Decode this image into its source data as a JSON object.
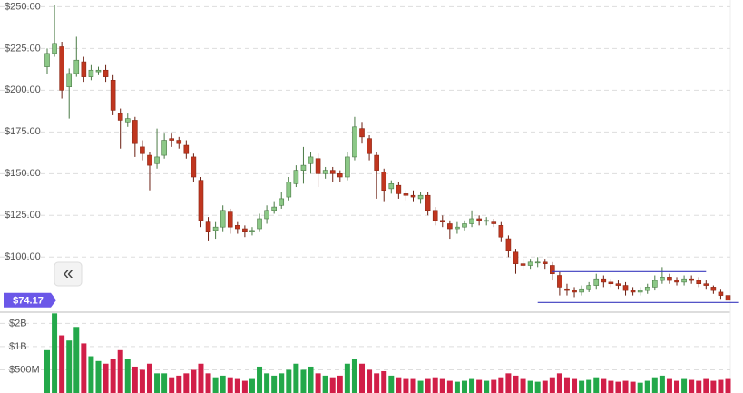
{
  "chart_data": {
    "type": "candlestick",
    "open": [
      214,
      222,
      226,
      202,
      210,
      217,
      208,
      211,
      212,
      206,
      186,
      181,
      182,
      166,
      161,
      156,
      161,
      171,
      170,
      167,
      160,
      146,
      121,
      116,
      118,
      127,
      119,
      117,
      115,
      117,
      123,
      128,
      131,
      136,
      144,
      152,
      156,
      159,
      150,
      152,
      150,
      148,
      160,
      177,
      171,
      161,
      151,
      141,
      143,
      138,
      137,
      135,
      137,
      128,
      122,
      120,
      117,
      118,
      120,
      123,
      122,
      121,
      119,
      111,
      103,
      96,
      95,
      97,
      97,
      95,
      89,
      81,
      80,
      79,
      81,
      83,
      87,
      85,
      84,
      83,
      80,
      79,
      80,
      82,
      86,
      88,
      86,
      85,
      87,
      86,
      84,
      82,
      79,
      77
    ],
    "high": [
      225,
      251,
      229,
      213,
      232,
      220,
      215,
      214,
      215,
      209,
      189,
      186,
      184,
      170,
      163,
      177,
      174,
      174,
      172,
      170,
      162,
      148,
      124,
      121,
      131,
      129,
      121,
      119,
      118,
      126,
      131,
      133,
      139,
      148,
      155,
      166,
      163,
      162,
      154,
      154,
      152,
      163,
      184,
      181,
      173,
      163,
      153,
      146,
      145,
      140,
      140,
      139,
      139,
      130,
      125,
      122,
      121,
      122,
      128,
      125,
      124,
      123,
      121,
      113,
      105,
      99,
      99,
      100,
      99,
      97,
      91,
      84,
      82,
      83,
      85,
      90,
      89,
      87,
      86,
      85,
      82,
      82,
      84,
      89,
      94,
      90,
      88,
      89,
      89,
      88,
      86,
      83,
      81,
      78
    ],
    "low": [
      210,
      220,
      195,
      183,
      208,
      205,
      206,
      209,
      205,
      185,
      165,
      178,
      160,
      158,
      140,
      153,
      159,
      166,
      165,
      159,
      145,
      118,
      110,
      111,
      115,
      114,
      114,
      112,
      113,
      115,
      120,
      126,
      129,
      134,
      142,
      144,
      150,
      142,
      147,
      145,
      145,
      146,
      158,
      168,
      158,
      135,
      133,
      138,
      135,
      134,
      133,
      132,
      125,
      119,
      118,
      111,
      114,
      116,
      118,
      119,
      119,
      118,
      109,
      100,
      90,
      92,
      93,
      94,
      93,
      86,
      77,
      77,
      76,
      77,
      79,
      81,
      82,
      82,
      81,
      77,
      77,
      77,
      78,
      80,
      84,
      84,
      83,
      83,
      84,
      82,
      81,
      78,
      75,
      73
    ],
    "close": [
      222,
      228,
      200,
      210,
      218,
      208,
      212,
      212,
      208,
      188,
      182,
      183,
      168,
      162,
      155,
      160,
      170,
      170,
      168,
      162,
      148,
      122,
      115,
      118,
      128,
      118,
      117,
      115,
      116,
      123,
      128,
      130,
      135,
      145,
      152,
      155,
      160,
      150,
      152,
      150,
      148,
      160,
      178,
      172,
      162,
      152,
      140,
      144,
      138,
      137,
      136,
      137,
      128,
      122,
      121,
      117,
      118,
      120,
      123,
      122,
      122,
      120,
      112,
      104,
      96,
      95,
      97,
      97,
      96,
      90,
      82,
      80,
      79,
      81,
      83,
      87,
      85,
      84,
      83,
      80,
      79,
      80,
      82,
      86,
      88,
      86,
      85,
      87,
      86,
      84,
      83,
      80,
      77,
      74.17
    ],
    "volume": [
      900000000,
      2700000000,
      1400000000,
      1200000000,
      1800000000,
      1100000000,
      750000000,
      650000000,
      600000000,
      700000000,
      900000000,
      700000000,
      550000000,
      500000000,
      600000000,
      450000000,
      450000000,
      400000000,
      420000000,
      450000000,
      500000000,
      600000000,
      450000000,
      400000000,
      420000000,
      400000000,
      380000000,
      360000000,
      380000000,
      550000000,
      450000000,
      420000000,
      450000000,
      500000000,
      600000000,
      500000000,
      550000000,
      450000000,
      420000000,
      400000000,
      420000000,
      600000000,
      700000000,
      600000000,
      500000000,
      450000000,
      480000000,
      420000000,
      400000000,
      380000000,
      380000000,
      360000000,
      380000000,
      400000000,
      380000000,
      360000000,
      350000000,
      360000000,
      380000000,
      370000000,
      360000000,
      370000000,
      400000000,
      450000000,
      420000000,
      380000000,
      360000000,
      350000000,
      360000000,
      400000000,
      450000000,
      400000000,
      380000000,
      360000000,
      370000000,
      400000000,
      380000000,
      360000000,
      350000000,
      360000000,
      350000000,
      340000000,
      360000000,
      400000000,
      420000000,
      380000000,
      360000000,
      380000000,
      370000000,
      360000000,
      380000000,
      360000000,
      370000000,
      380000000
    ],
    "ylim": [
      67,
      254
    ],
    "yticks": [
      {
        "value": 100,
        "label": "$100.00"
      },
      {
        "value": 125,
        "label": "$125.00"
      },
      {
        "value": 150,
        "label": "$150.00"
      },
      {
        "value": 175,
        "label": "$175.00"
      },
      {
        "value": 200,
        "label": "$200.00"
      },
      {
        "value": 225,
        "label": "$225.00"
      },
      {
        "value": 250,
        "label": "$250.00"
      }
    ],
    "volume_ylim": [
      250000000,
      2800000000
    ],
    "volume_log": true,
    "volume_yticks": [
      {
        "value": 500000000,
        "label": "$500M"
      },
      {
        "value": 1000000000,
        "label": "$1B"
      },
      {
        "value": 2000000000,
        "label": "$2B"
      }
    ],
    "grid": true,
    "up_color": "#8cc887",
    "down_color": "#c0361f",
    "volume_up_color": "#23a84a",
    "volume_down_color": "#d11f48",
    "lines": [
      {
        "y": 91.3,
        "x": [
          69,
          90
        ],
        "color": "#3b3bbf"
      },
      {
        "y": 72.8,
        "x": [
          67,
          94.5
        ],
        "color": "#3b3bbf"
      }
    ],
    "last_price": {
      "value": 74.17,
      "label": "$74.17",
      "color": "#6b57e8"
    },
    "button": {
      "label": "«"
    }
  }
}
